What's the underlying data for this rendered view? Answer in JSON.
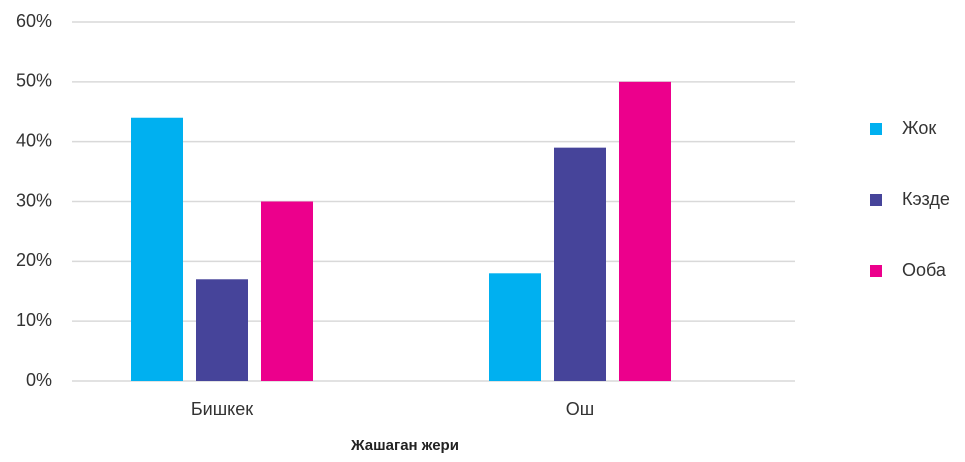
{
  "chart_data": {
    "type": "bar",
    "x_label": "Жашаган жери",
    "categories": [
      "Бишкек",
      "Ош"
    ],
    "series": [
      {
        "name": "Жок",
        "color": "#00b0f0",
        "values": [
          44,
          18
        ]
      },
      {
        "name": "Кэзде",
        "color": "#46449a",
        "values": [
          17,
          39
        ]
      },
      {
        "name": "Ооба",
        "color": "#ec008c",
        "values": [
          30,
          50
        ]
      }
    ],
    "ylim": [
      0,
      60
    ],
    "yticks": [
      {
        "value": 0,
        "label": "0%"
      },
      {
        "value": 10,
        "label": "10%"
      },
      {
        "value": 20,
        "label": "20%"
      },
      {
        "value": 30,
        "label": "30%"
      },
      {
        "value": 40,
        "label": "40%"
      },
      {
        "value": 50,
        "label": "50%"
      },
      {
        "value": 60,
        "label": "60%"
      }
    ],
    "grid": true,
    "legend": "right"
  }
}
